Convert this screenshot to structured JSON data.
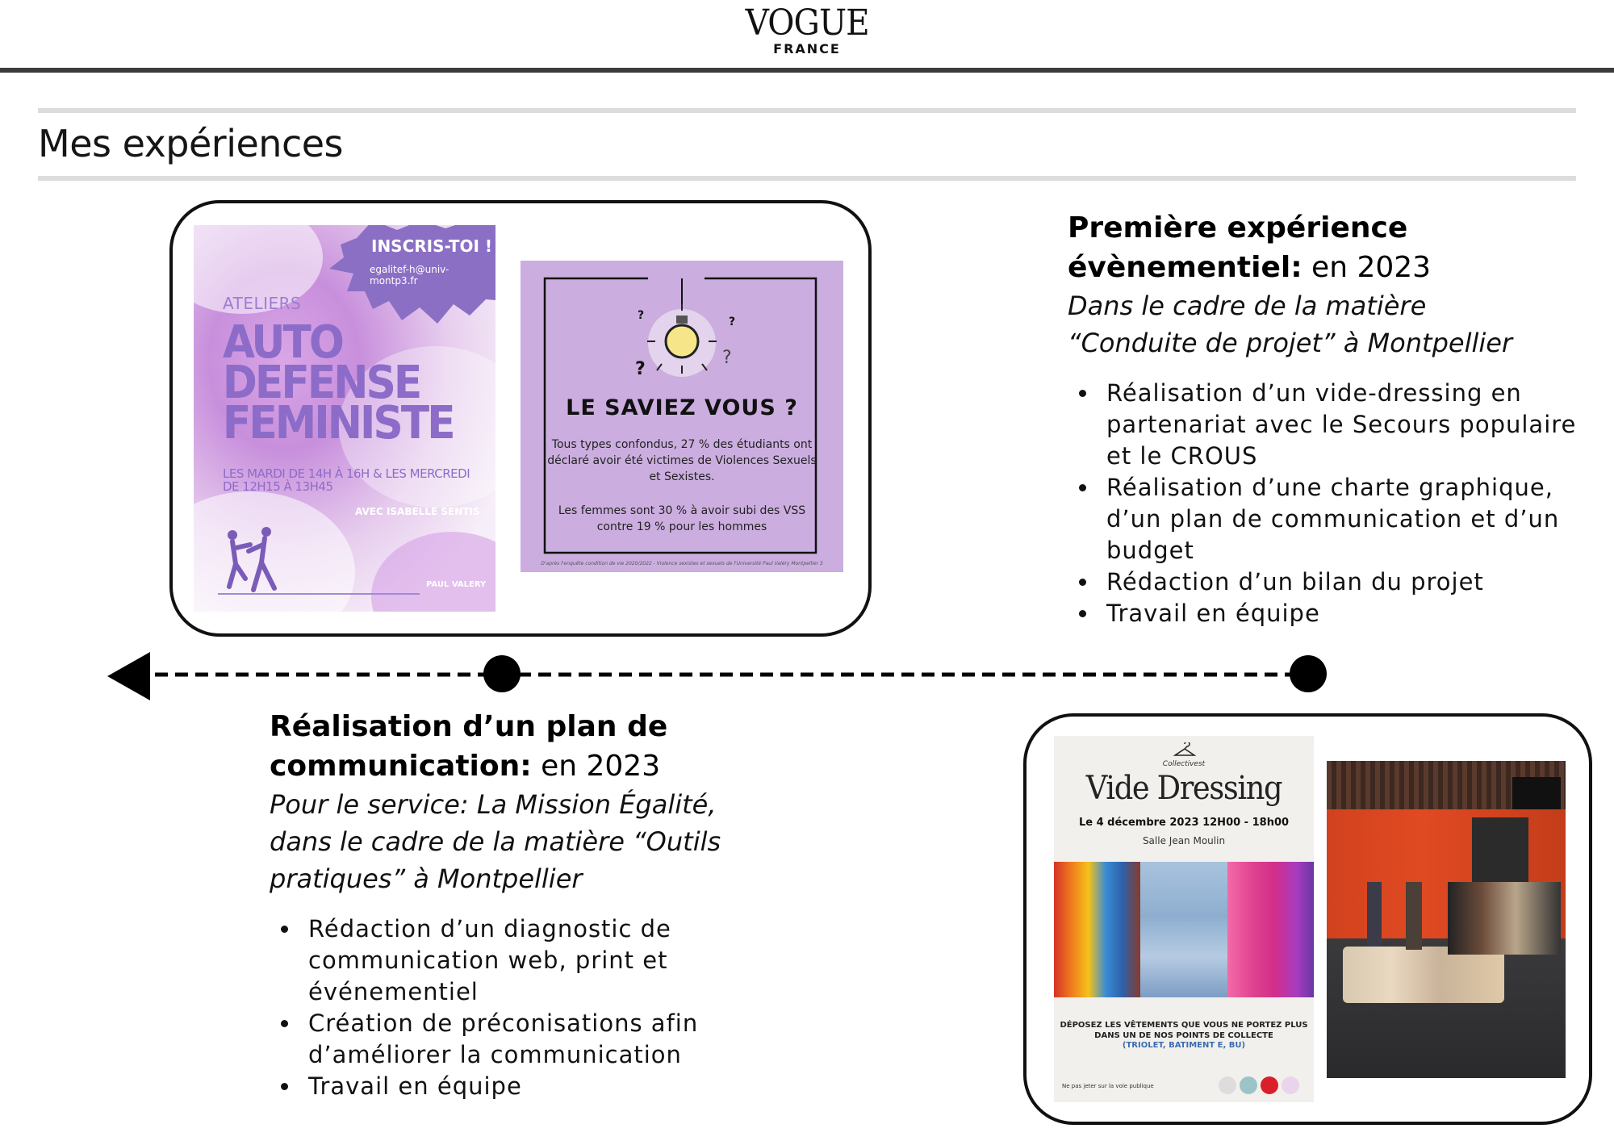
{
  "header": {
    "logo_main": "VOGUE",
    "logo_sub": "FRANCE"
  },
  "section": {
    "title": "Mes expériences"
  },
  "experience_1": {
    "title_bold_line1": "Première expérience",
    "title_bold_line2": "évènementiel:",
    "year": " en 2023",
    "subtitle_line1": "Dans le cadre de la matière",
    "subtitle_line2": "“Conduite de projet” à Montpellier",
    "bullets": [
      "Réalisation d’un vide-dressing en partenariat avec le Secours populaire et le CROUS",
      "Réalisation d’une charte graphique, d’un plan de communication et d’un budget",
      "Rédaction d’un bilan du projet",
      "Travail en équipe"
    ]
  },
  "experience_2": {
    "title_bold_line1": "Réalisation d’un plan de",
    "title_bold_line2": "communication:",
    "year": " en 2023",
    "subtitle_line1": "Pour le service: La Mission Égalité,",
    "subtitle_line2": "dans le cadre de la matière “Outils",
    "subtitle_line3": "pratiques” à Montpellier",
    "bullets": [
      "Rédaction d’un diagnostic de communication web, print et événementiel",
      "Création de préconisations afin d’améliorer la communication",
      "Travail en équipe"
    ]
  },
  "poster_autodefense": {
    "badge": "INSCRIS-TOI !",
    "email": "egalitef-h@univ-montp3.fr",
    "ateliers": "ATELIERS",
    "line1": "AUTO",
    "line2": "DEFENSE",
    "line3": "FEMINISTE",
    "dates": "LES MARDI DE 14H À 16H & LES MERCREDI DE 12H15 À 13H45",
    "avec": "AVEC ISABELLE SENTIS",
    "logo": "PAUL VALERY"
  },
  "poster_saviez": {
    "title": "LE SAVIEZ VOUS ?",
    "text1": "Tous types confondus, 27 % des étudiants ont déclaré avoir été victimes de Violences Sexuels et Sexistes.",
    "text2": "Les femmes sont 30 % à avoir subi des VSS contre 19 % pour les hommes",
    "source": "D'après l'enquête condition de vie 2020/2022 - Violence sexistes et sexuels de l'Université Paul Valéry Montpellier 3"
  },
  "poster_vide_dressing": {
    "brand": "Collectivest",
    "title": "Vide Dressing",
    "date": "Le 4 décembre 2023   12H00 - 18h00",
    "place": "Salle Jean Moulin",
    "deposez": "DÉPOSEZ LES VÊTEMENTS QUE VOUS NE PORTEZ PLUS DANS UN DE NOS POINTS DE COLLECTE",
    "collecte": "(TRIOLET, BATIMENT E, BU)",
    "jeter": "Ne pas jeter sur la voie publique"
  },
  "colors": {
    "header_bar": "#3b3b3b",
    "rule": "#dcdcdc",
    "purple_poster": "#cbaedf",
    "purple_text": "#8c6cc8"
  }
}
